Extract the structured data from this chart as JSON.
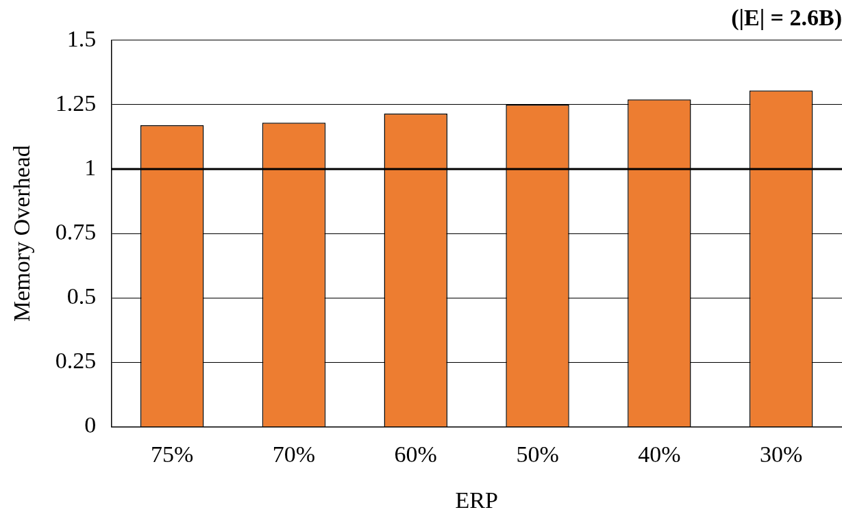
{
  "chart_data": {
    "type": "bar",
    "title": "(|E| = 2.6B)",
    "xlabel": "ERP",
    "ylabel": "Memory Overhead",
    "categories": [
      "75%",
      "70%",
      "60%",
      "50%",
      "40%",
      "30%"
    ],
    "series": [
      {
        "color": "#ed7d31",
        "values": [
          1.17,
          1.18,
          1.215,
          1.25,
          1.27,
          1.305
        ]
      }
    ],
    "ylim": [
      0,
      1.5
    ],
    "yticks": [
      0,
      0.25,
      0.5,
      0.75,
      1,
      1.25,
      1.5
    ],
    "grid": "y",
    "legend": false,
    "ref_lines": [
      {
        "axis": "y",
        "value": 1,
        "color": "#000000",
        "line_style": "solid"
      }
    ]
  }
}
